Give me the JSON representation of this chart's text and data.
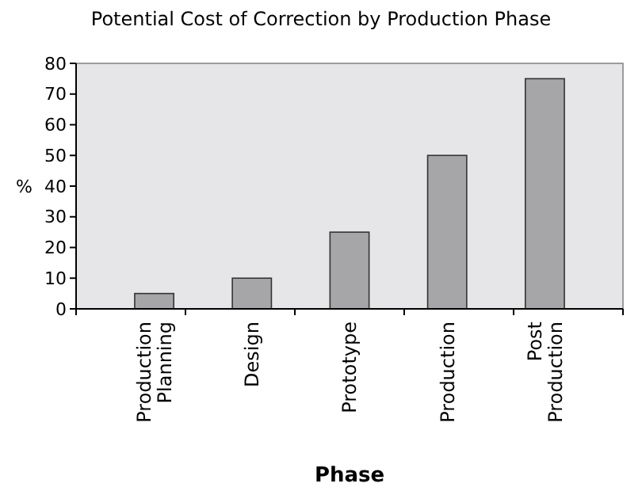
{
  "chart_data": {
    "type": "bar",
    "title": "Potential Cost of Correction by Production Phase",
    "xlabel": "Phase",
    "ylabel": "%",
    "categories": [
      "Production Planning",
      "Design",
      "Prototype",
      "Production",
      "Post Production"
    ],
    "values": [
      5,
      10,
      25,
      50,
      75
    ],
    "color": "#a6a6a8",
    "ylim": [
      0,
      80
    ],
    "yticks": [
      0,
      10,
      20,
      30,
      40,
      50,
      60,
      70,
      80
    ],
    "grid": false
  }
}
